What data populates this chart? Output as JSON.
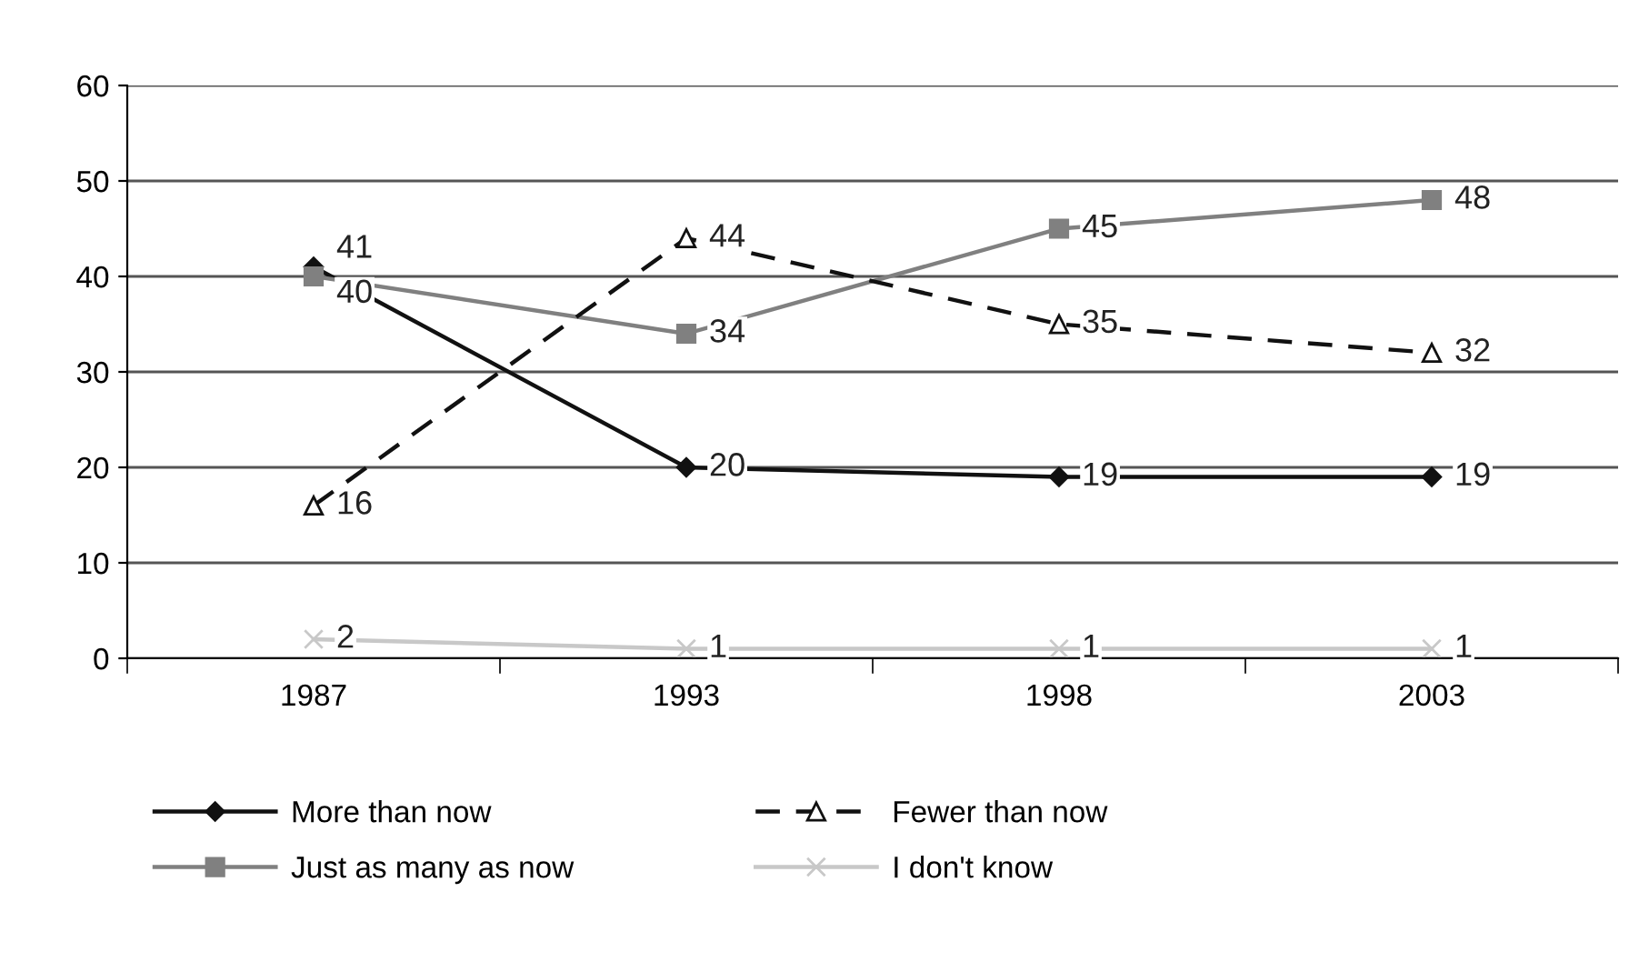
{
  "chart_data": {
    "type": "line",
    "categories": [
      "1987",
      "1993",
      "1998",
      "2003"
    ],
    "series": [
      {
        "name": "More than now",
        "color": "#111111",
        "values": [
          41,
          20,
          19,
          19
        ],
        "marker": "diamond",
        "line_style": "solid"
      },
      {
        "name": "Just as many as now",
        "color": "#808080",
        "values": [
          40,
          34,
          45,
          48
        ],
        "marker": "square",
        "line_style": "solid"
      },
      {
        "name": "Fewer than now",
        "color": "#111111",
        "values": [
          16,
          44,
          35,
          32
        ],
        "marker": "triangle",
        "line_style": "dashed"
      },
      {
        "name": "I don't know",
        "color": "#c8c8c8",
        "values": [
          2,
          1,
          1,
          1
        ],
        "marker": "cross",
        "line_style": "solid"
      }
    ],
    "ylim": [
      0,
      60
    ],
    "yticks": [
      0,
      10,
      20,
      30,
      40,
      50,
      60
    ],
    "grid": "y",
    "legend": "bottom",
    "data_labels": true
  }
}
